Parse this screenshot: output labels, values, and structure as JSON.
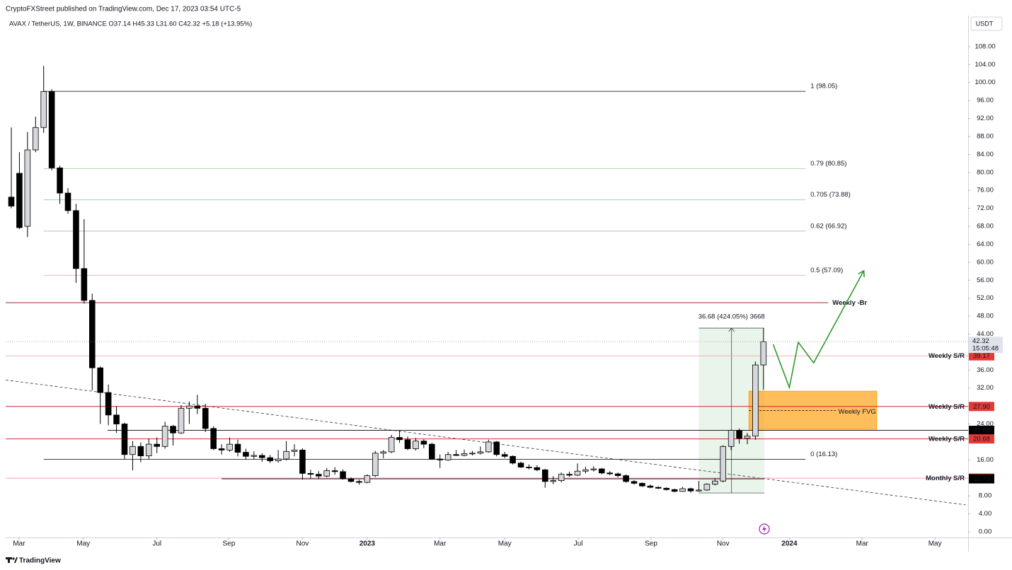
{
  "chart_data": {
    "type": "candlestick",
    "published": "CryptoFXStreet published on TradingView.com, Dec 17, 2023 03:54 UTC-5",
    "title": "AVAX / TetherUS, 1W, BINANCE  O37.14  H45.33  L31.60  C42.32  +5.18 (+13.95%)",
    "currency": "USDT",
    "brand": "TradingView",
    "up_color": "#d6d7dc",
    "down_color": "#000000",
    "xlim": [
      -0.7,
      118.3
    ],
    "ylim": [
      -1.26,
      116.8
    ],
    "xticks": [
      {
        "value": 0.96,
        "label": "Mar"
      },
      {
        "value": 8.9,
        "label": "May"
      },
      {
        "value": 18.0,
        "label": "Jul"
      },
      {
        "value": 26.9,
        "label": "Sep"
      },
      {
        "value": 36.0,
        "label": "Nov"
      },
      {
        "value": 44.0,
        "label": "2023"
      },
      {
        "value": 53.0,
        "label": "Mar"
      },
      {
        "value": 61.0,
        "label": "May"
      },
      {
        "value": 70.1,
        "label": "Jul"
      },
      {
        "value": 79.1,
        "label": "Sep"
      },
      {
        "value": 88.0,
        "label": "Nov"
      },
      {
        "value": 96.2,
        "label": "2024"
      },
      {
        "value": 105.2,
        "label": "Mar"
      },
      {
        "value": 114.2,
        "label": "May"
      }
    ],
    "yticks": [
      {
        "value": 0,
        "label": "0.00"
      },
      {
        "value": 4,
        "label": "4.00"
      },
      {
        "value": 8,
        "label": "8.00"
      },
      {
        "value": 16,
        "label": "16.00"
      },
      {
        "value": 24,
        "label": "24.00"
      },
      {
        "value": 32,
        "label": "32.00"
      },
      {
        "value": 36,
        "label": "36.00"
      },
      {
        "value": 44,
        "label": "44.00"
      },
      {
        "value": 48,
        "label": "48.00"
      },
      {
        "value": 52,
        "label": "52.00"
      },
      {
        "value": 56,
        "label": "56.00"
      },
      {
        "value": 60,
        "label": "60.00"
      },
      {
        "value": 64,
        "label": "64.00"
      },
      {
        "value": 68,
        "label": "68.00"
      },
      {
        "value": 72,
        "label": "72.00"
      },
      {
        "value": 76,
        "label": "76.00"
      },
      {
        "value": 80,
        "label": "80.00"
      },
      {
        "value": 84,
        "label": "84.00"
      },
      {
        "value": 88,
        "label": "88.00"
      },
      {
        "value": 92,
        "label": "92.00"
      },
      {
        "value": 96,
        "label": "96.00"
      },
      {
        "value": 100,
        "label": "100.00"
      },
      {
        "value": 104,
        "label": "104.00"
      },
      {
        "value": 108,
        "label": "108.00"
      }
    ],
    "ohlc": [
      [
        74.5,
        90,
        72,
        72.5
      ],
      [
        79.8,
        84.5,
        67.4,
        67.7
      ],
      [
        68,
        89,
        65.6,
        85
      ],
      [
        85,
        92.4,
        84.5,
        90
      ],
      [
        90,
        103.7,
        88.8,
        98
      ],
      [
        98,
        98.5,
        80.5,
        81
      ],
      [
        81,
        81.5,
        73,
        75.4
      ],
      [
        75.4,
        76.5,
        70.8,
        71.5
      ],
      [
        71.5,
        73,
        55.4,
        58.6
      ],
      [
        58.6,
        69.6,
        50.8,
        51.5
      ],
      [
        51.5,
        53,
        31.5,
        36.5
      ],
      [
        36.5,
        36.8,
        24,
        31
      ],
      [
        31,
        32.8,
        23.7,
        26
      ],
      [
        26,
        28,
        22,
        24
      ],
      [
        24,
        24.3,
        16.2,
        17.2
      ],
      [
        17.2,
        20.2,
        13.7,
        19.0
      ],
      [
        19.0,
        19.9,
        15.5,
        16.9
      ],
      [
        16.9,
        20.8,
        16.2,
        19.5
      ],
      [
        19.5,
        21,
        17.5,
        19.0
      ],
      [
        19.0,
        24.5,
        18.5,
        23.5
      ],
      [
        23.5,
        23.8,
        19.2,
        22.0
      ],
      [
        22.0,
        28.2,
        21.8,
        27.5
      ],
      [
        27.5,
        29,
        24,
        28.0
      ],
      [
        28.0,
        30.5,
        26.2,
        27.5
      ],
      [
        27.5,
        28.5,
        22.2,
        23.0
      ],
      [
        23.0,
        23.5,
        18.2,
        18.5
      ],
      [
        18.5,
        19.5,
        17.2,
        18.2
      ],
      [
        18.2,
        21,
        17.8,
        19.5
      ],
      [
        19.5,
        20.5,
        16.8,
        17.7
      ],
      [
        17.7,
        18.5,
        16.1,
        16.8
      ],
      [
        16.8,
        17.9,
        16.2,
        17.0
      ],
      [
        17.0,
        17.5,
        15.6,
        16.5
      ],
      [
        16.5,
        17.1,
        15.3,
        15.8
      ],
      [
        15.8,
        18.2,
        15.4,
        16.2
      ],
      [
        16.2,
        20.2,
        15.9,
        17.9
      ],
      [
        17.9,
        19.5,
        16.8,
        18.2
      ],
      [
        18.2,
        18.6,
        11.6,
        13.0
      ],
      [
        13.0,
        13.8,
        11.9,
        12.8
      ],
      [
        12.8,
        13.5,
        11.8,
        12.4
      ],
      [
        12.4,
        14.2,
        12.1,
        13.6
      ],
      [
        13.6,
        14.4,
        12.7,
        13.4
      ],
      [
        13.4,
        13.9,
        11.6,
        11.8
      ],
      [
        11.8,
        12.1,
        11.0,
        11.2
      ],
      [
        11.2,
        11.6,
        10.5,
        11.0
      ],
      [
        11.0,
        12.8,
        10.8,
        12.5
      ],
      [
        12.5,
        18.0,
        12.2,
        17.5
      ],
      [
        17.5,
        18.2,
        16.4,
        17.8
      ],
      [
        17.8,
        21.6,
        17.5,
        21.0
      ],
      [
        21.0,
        22.5,
        19.8,
        20.5
      ],
      [
        20.5,
        21.2,
        18.2,
        18.5
      ],
      [
        18.5,
        20.9,
        18.1,
        20.2
      ],
      [
        20.2,
        20.6,
        18.6,
        19.5
      ],
      [
        19.5,
        19.8,
        16.0,
        16.2
      ],
      [
        16.2,
        17.2,
        14.2,
        16.0
      ],
      [
        16.0,
        17.8,
        15.8,
        17.2
      ],
      [
        17.2,
        18.2,
        16.9,
        17.0
      ],
      [
        17.0,
        18.3,
        16.8,
        17.4
      ],
      [
        17.4,
        18.0,
        17.0,
        17.5
      ],
      [
        17.5,
        19.0,
        17.2,
        17.8
      ],
      [
        17.8,
        20.5,
        17.6,
        20.0
      ],
      [
        20.0,
        20.2,
        16.8,
        17.2
      ],
      [
        17.2,
        17.8,
        16.4,
        16.8
      ],
      [
        16.8,
        17.0,
        15.0,
        15.3
      ],
      [
        15.3,
        15.6,
        14.2,
        14.4
      ],
      [
        14.4,
        15.0,
        13.9,
        14.3
      ],
      [
        14.3,
        14.8,
        13.5,
        13.8
      ],
      [
        13.8,
        14.0,
        9.8,
        11.2
      ],
      [
        11.2,
        12.4,
        10.6,
        11.4
      ],
      [
        11.4,
        13.2,
        11.0,
        12.8
      ],
      [
        12.8,
        13.4,
        12.2,
        12.6
      ],
      [
        12.6,
        15.2,
        12.4,
        13.5
      ],
      [
        13.5,
        14.5,
        13.0,
        13.8
      ],
      [
        13.8,
        14.6,
        13.4,
        14.0
      ],
      [
        14.0,
        14.2,
        12.8,
        13.1
      ],
      [
        13.1,
        13.5,
        12.6,
        12.9
      ],
      [
        12.9,
        13.2,
        12.1,
        12.5
      ],
      [
        12.5,
        12.8,
        10.9,
        11.2
      ],
      [
        11.2,
        11.5,
        10.5,
        10.8
      ],
      [
        10.8,
        11.0,
        10.0,
        10.2
      ],
      [
        10.2,
        10.5,
        9.7,
        9.9
      ],
      [
        9.9,
        10.1,
        9.5,
        9.7
      ],
      [
        9.7,
        9.9,
        9.2,
        9.4
      ],
      [
        9.4,
        9.6,
        8.8,
        9.0
      ],
      [
        9.0,
        10.0,
        8.9,
        9.6
      ],
      [
        9.6,
        9.8,
        8.7,
        9.1
      ],
      [
        9.1,
        11.3,
        8.9,
        9.3
      ],
      [
        9.3,
        10.8,
        9.1,
        10.6
      ],
      [
        10.6,
        11.9,
        10.3,
        11.3
      ],
      [
        11.3,
        19.3,
        11.0,
        19.0
      ],
      [
        19.0,
        22.8,
        18.2,
        22.6
      ],
      [
        22.6,
        23.0,
        19.6,
        20.8
      ],
      [
        20.8,
        22.0,
        19.5,
        21.3
      ],
      [
        21.3,
        37.9,
        20.5,
        37.14
      ],
      [
        37.14,
        45.33,
        31.6,
        42.32
      ]
    ],
    "last_price": 42.32,
    "last_price_label": "42.32",
    "countdown": "15:05:48",
    "fib_levels": [
      {
        "label": "1 (98.05)",
        "value": 98.05,
        "color": "#000000",
        "x": [
          4,
          98.2
        ]
      },
      {
        "label": "0.79 (80.85)",
        "value": 80.85,
        "color": "#4caf50",
        "x": [
          4,
          98.2
        ]
      },
      {
        "label": "0.705 (73.88)",
        "value": 73.88,
        "color": "#43a047",
        "x": [
          4,
          98.2
        ]
      },
      {
        "label": "0.62 (66.92)",
        "value": 66.92,
        "color": "#388e3c",
        "x": [
          4,
          98.2
        ]
      },
      {
        "label": "0.5 (57.09)",
        "value": 57.09,
        "color": "#e57373",
        "x": [
          4,
          98.2
        ]
      },
      {
        "label": "0 (16.13)",
        "value": 16.13,
        "color": "#000000",
        "x": [
          4,
          98.2
        ]
      }
    ],
    "sr_levels": [
      {
        "label": "Weekly -Br",
        "value": 51.0,
        "color": "#9c2a2a",
        "x": [
          -0.7,
          101
        ]
      },
      {
        "label": "Weekly S/R",
        "value": 39.17,
        "value_label": "39.17",
        "color": "#f2a7a7",
        "box_color": "#e53935",
        "x": [
          -0.7,
          118.3
        ]
      },
      {
        "label": "Weekly S/R",
        "value": 27.9,
        "value_label": "27.90",
        "color": "#c62828",
        "box_color": "#e53935",
        "x": [
          -0.7,
          118.3
        ]
      },
      {
        "value": 22.58,
        "value_label": "22.58",
        "color": "#000000",
        "box_color": "#000000",
        "x": [
          11.9,
          118.3
        ]
      },
      {
        "label": "Weekly S/R",
        "value": 20.68,
        "value_label": "20.68",
        "color": "#d32f2f",
        "box_color": "#e53935",
        "x": [
          -0.7,
          118.3
        ]
      },
      {
        "label": "Monthly S/R",
        "value": 11.95,
        "value_label": "11.95",
        "color": "#f48fb1",
        "box_color": "#e53935",
        "x": [
          -0.7,
          118.3
        ]
      },
      {
        "value": 11.79,
        "value_label": "11.79",
        "color": "#000000",
        "box_color": "#000000",
        "x": [
          26,
          93.1
        ]
      }
    ],
    "measure": {
      "label": "36.68 (424.05%) 3668",
      "x": [
        85,
        93.1
      ],
      "values": [
        8.65,
        45.33
      ]
    },
    "fvg": {
      "label": "Weekly FVG",
      "x": [
        91.2,
        107
      ],
      "values": [
        22.8,
        31.3
      ],
      "mid": 27.0
    },
    "projection": {
      "x": [
        94.2,
        96.2,
        97.3,
        99.2,
        105.4
      ],
      "values": [
        41.7,
        32.1,
        42.2,
        37.6,
        58.1
      ],
      "color": "#2e9b2e"
    },
    "trendline": {
      "x": [
        -0.7,
        118
      ],
      "values": [
        33.8,
        6.0
      ]
    }
  }
}
